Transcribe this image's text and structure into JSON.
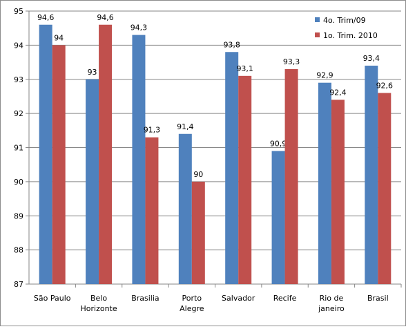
{
  "chart_data": {
    "type": "bar",
    "title": "",
    "xlabel": "",
    "ylabel": "",
    "ylim": [
      87,
      95
    ],
    "yticks": [
      87,
      88,
      89,
      90,
      91,
      92,
      93,
      94,
      95
    ],
    "grid": true,
    "legend_position": "top-right",
    "categories": [
      "São Paulo",
      "Belo\nHorizonte",
      "Brasilia",
      "Porto\nAlegre",
      "Salvador",
      "Recife",
      "Rio de\njaneiro",
      "Brasil"
    ],
    "series": [
      {
        "name": "4o. Trim/09",
        "color": "#4f81bd",
        "values": [
          94.6,
          93,
          94.3,
          91.4,
          93.8,
          90.9,
          92.9,
          93.4
        ],
        "labels": [
          "94,6",
          "93",
          "94,3",
          "91,4",
          "93,8",
          "90,9",
          "92,9",
          "93,4"
        ]
      },
      {
        "name": "1o. Trim. 2010",
        "color": "#c0504d",
        "values": [
          94,
          94.6,
          91.3,
          90,
          93.1,
          93.3,
          92.4,
          92.6
        ],
        "labels": [
          "94",
          "94,6",
          "91,3",
          "90",
          "93,1",
          "93,3",
          "92,4",
          "92,6"
        ]
      }
    ]
  }
}
